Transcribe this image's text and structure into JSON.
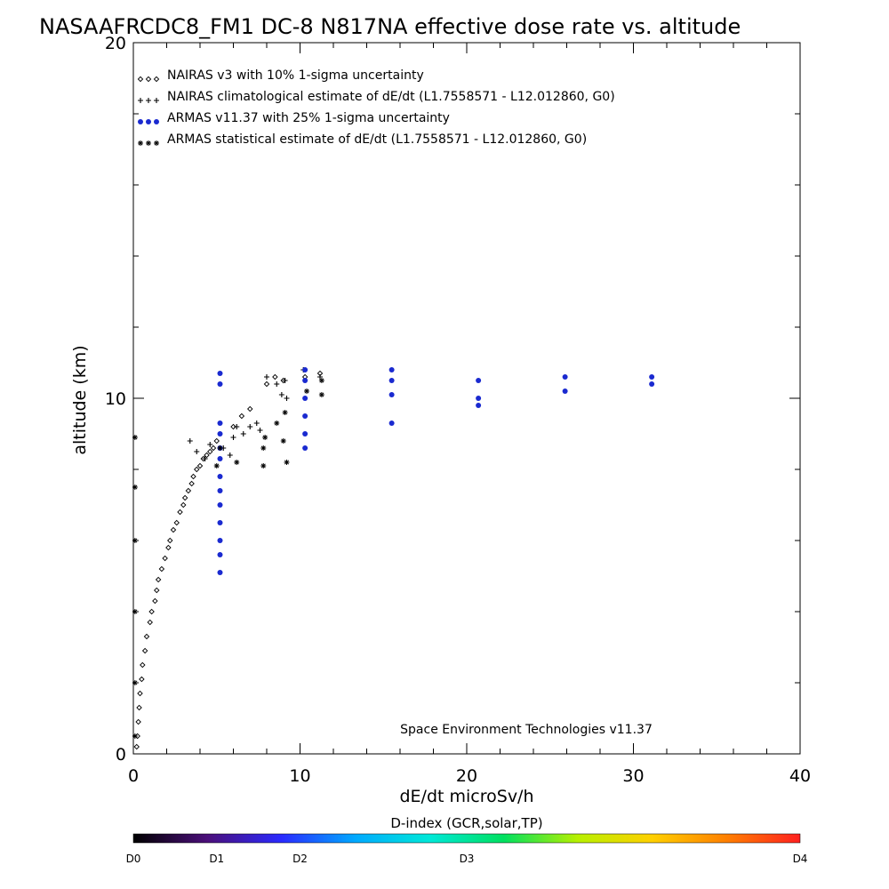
{
  "chart_data": {
    "type": "scatter",
    "title": "NASAAFRCDC8_FM1 DC-8   N817NA effective dose rate vs. altitude",
    "xlabel": "dE/dt microSv/h",
    "ylabel": "altitude (km)",
    "xlim": [
      0,
      40
    ],
    "ylim": [
      0,
      20
    ],
    "x_ticks": [
      "0",
      "10",
      "20",
      "30",
      "40"
    ],
    "y_ticks": [
      "0",
      "10",
      "20"
    ],
    "legend_placement": "top-left",
    "annotation": "Space Environment Technologies v11.37",
    "colorbar": {
      "title": "D-index (GCR,solar,TP)",
      "labels": [
        {
          "text": "D0",
          "value": 0
        },
        {
          "text": "D1",
          "value": 5
        },
        {
          "text": "D2",
          "value": 10
        },
        {
          "text": "D3",
          "value": 20
        },
        {
          "text": "D4",
          "value": 40
        }
      ],
      "colors": [
        "#000000",
        "#4b0f7a",
        "#2a2aff",
        "#00aaff",
        "#00e8d8",
        "#00e060",
        "#b8f000",
        "#ffd000",
        "#ff8000",
        "#ff2020"
      ]
    },
    "series": [
      {
        "name": "NAIRAS v3 with 10% 1-sigma uncertainty",
        "marker": "diamond",
        "color": "#000000",
        "points": [
          [
            0.2,
            0.2
          ],
          [
            0.25,
            0.5
          ],
          [
            0.3,
            0.9
          ],
          [
            0.35,
            1.3
          ],
          [
            0.4,
            1.7
          ],
          [
            0.5,
            2.1
          ],
          [
            0.55,
            2.5
          ],
          [
            0.7,
            2.9
          ],
          [
            0.8,
            3.3
          ],
          [
            1.0,
            3.7
          ],
          [
            1.1,
            4.0
          ],
          [
            1.3,
            4.3
          ],
          [
            1.4,
            4.6
          ],
          [
            1.5,
            4.9
          ],
          [
            1.7,
            5.2
          ],
          [
            1.9,
            5.5
          ],
          [
            2.1,
            5.8
          ],
          [
            2.2,
            6.0
          ],
          [
            2.4,
            6.3
          ],
          [
            2.6,
            6.5
          ],
          [
            2.8,
            6.8
          ],
          [
            3.0,
            7.0
          ],
          [
            3.1,
            7.2
          ],
          [
            3.3,
            7.4
          ],
          [
            3.5,
            7.6
          ],
          [
            3.6,
            7.8
          ],
          [
            3.8,
            8.0
          ],
          [
            4.0,
            8.1
          ],
          [
            4.2,
            8.3
          ],
          [
            4.4,
            8.4
          ],
          [
            4.6,
            8.5
          ],
          [
            4.8,
            8.6
          ],
          [
            5.0,
            8.8
          ],
          [
            6.0,
            9.2
          ],
          [
            6.5,
            9.5
          ],
          [
            7.0,
            9.7
          ],
          [
            8.0,
            10.4
          ],
          [
            8.5,
            10.6
          ],
          [
            9.0,
            10.5
          ],
          [
            10.3,
            10.6
          ],
          [
            11.2,
            10.7
          ]
        ]
      },
      {
        "name": "NAIRAS climatological estimate of dE/dt (L1.7558571 - L12.012860, G0)",
        "marker": "plus",
        "color": "#000000",
        "points": [
          [
            3.4,
            8.8
          ],
          [
            3.8,
            8.5
          ],
          [
            4.3,
            8.3
          ],
          [
            4.6,
            8.7
          ],
          [
            5.4,
            8.6
          ],
          [
            5.8,
            8.4
          ],
          [
            6.0,
            8.9
          ],
          [
            6.2,
            9.2
          ],
          [
            6.6,
            9.0
          ],
          [
            7.0,
            9.2
          ],
          [
            7.4,
            9.3
          ],
          [
            7.6,
            9.1
          ],
          [
            8.0,
            10.6
          ],
          [
            8.6,
            10.4
          ],
          [
            9.1,
            10.5
          ],
          [
            8.9,
            10.1
          ],
          [
            9.2,
            10.0
          ],
          [
            10.2,
            10.8
          ],
          [
            11.2,
            10.6
          ]
        ]
      },
      {
        "name": "ARMAS v11.37 with 25% 1-sigma uncertainty",
        "marker": "dot",
        "color": "#1a2ad0",
        "points": [
          [
            5.2,
            5.1
          ],
          [
            5.2,
            5.6
          ],
          [
            5.2,
            6.0
          ],
          [
            5.2,
            6.5
          ],
          [
            5.2,
            7.0
          ],
          [
            5.2,
            7.4
          ],
          [
            5.2,
            7.8
          ],
          [
            5.2,
            8.3
          ],
          [
            5.2,
            8.6
          ],
          [
            5.2,
            9.0
          ],
          [
            5.2,
            9.3
          ],
          [
            5.2,
            10.4
          ],
          [
            5.2,
            10.7
          ],
          [
            10.3,
            8.6
          ],
          [
            10.3,
            9.0
          ],
          [
            10.3,
            9.5
          ],
          [
            10.3,
            10.0
          ],
          [
            10.3,
            10.5
          ],
          [
            10.3,
            10.8
          ],
          [
            15.5,
            9.3
          ],
          [
            15.5,
            10.1
          ],
          [
            15.5,
            10.5
          ],
          [
            15.5,
            10.8
          ],
          [
            20.7,
            9.8
          ],
          [
            20.7,
            10.0
          ],
          [
            20.7,
            10.5
          ],
          [
            25.9,
            10.2
          ],
          [
            25.9,
            10.6
          ],
          [
            31.1,
            10.4
          ],
          [
            31.1,
            10.6
          ]
        ]
      },
      {
        "name": "ARMAS statistical estimate of dE/dt (L1.7558571 - L12.012860, G0)",
        "marker": "asterisk",
        "color": "#000000",
        "points": [
          [
            0.1,
            0.5
          ],
          [
            0.1,
            2.0
          ],
          [
            0.1,
            4.0
          ],
          [
            0.1,
            6.0
          ],
          [
            0.1,
            7.5
          ],
          [
            0.1,
            8.9
          ],
          [
            5.0,
            8.1
          ],
          [
            5.2,
            8.6
          ],
          [
            6.2,
            8.2
          ],
          [
            7.8,
            8.1
          ],
          [
            7.8,
            8.6
          ],
          [
            7.9,
            8.9
          ],
          [
            8.6,
            9.3
          ],
          [
            9.0,
            8.8
          ],
          [
            9.1,
            9.6
          ],
          [
            9.2,
            8.2
          ],
          [
            10.4,
            10.2
          ],
          [
            11.3,
            10.1
          ],
          [
            11.3,
            10.5
          ]
        ]
      }
    ]
  }
}
